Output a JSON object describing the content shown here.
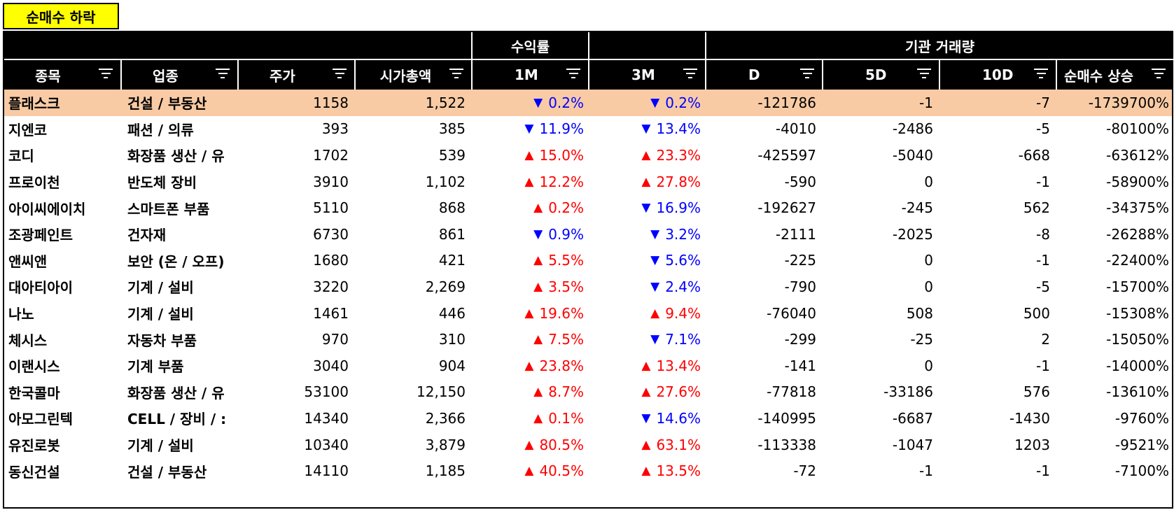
{
  "tag": "순매수 하락",
  "header_groups": {
    "returns": "수익률",
    "institution": "기관 거래량"
  },
  "columns": [
    "종목",
    "업종",
    "주가",
    "시가총액",
    "1M",
    "3M",
    "D",
    "5D",
    "10D",
    "순매수 상승"
  ],
  "colors": {
    "highlight": "#f8cba5",
    "up": "#ff0000",
    "down": "#0000ff",
    "tag_bg": "#ffff00"
  },
  "rows": [
    {
      "name": "플래스크",
      "sector": "건설 / 부동산",
      "price": "1158",
      "cap": "1,522",
      "r1m_dir": "down",
      "r1m": "0.2%",
      "r3m_dir": "down",
      "r3m": "0.2%",
      "d": "-121786",
      "d5": "-1",
      "d10": "-7",
      "net": "-1739700%",
      "highlight": true
    },
    {
      "name": "지엔코",
      "sector": "패션 / 의류",
      "price": "393",
      "cap": "385",
      "r1m_dir": "down",
      "r1m": "11.9%",
      "r3m_dir": "down",
      "r3m": "13.4%",
      "d": "-4010",
      "d5": "-2486",
      "d10": "-5",
      "net": "-80100%"
    },
    {
      "name": "코디",
      "sector": "화장품 생산 / 유",
      "price": "1702",
      "cap": "539",
      "r1m_dir": "up",
      "r1m": "15.0%",
      "r3m_dir": "up",
      "r3m": "23.3%",
      "d": "-425597",
      "d5": "-5040",
      "d10": "-668",
      "net": "-63612%"
    },
    {
      "name": "프로이천",
      "sector": "반도체 장비",
      "price": "3910",
      "cap": "1,102",
      "r1m_dir": "up",
      "r1m": "12.2%",
      "r3m_dir": "up",
      "r3m": "27.8%",
      "d": "-590",
      "d5": "0",
      "d10": "-1",
      "net": "-58900%"
    },
    {
      "name": "아이씨에이치",
      "sector": "스마트폰 부품",
      "price": "5110",
      "cap": "868",
      "r1m_dir": "up",
      "r1m": "0.2%",
      "r3m_dir": "down",
      "r3m": "16.9%",
      "d": "-192627",
      "d5": "-245",
      "d10": "562",
      "net": "-34375%"
    },
    {
      "name": "조광페인트",
      "sector": "건자재",
      "price": "6730",
      "cap": "861",
      "r1m_dir": "down",
      "r1m": "0.9%",
      "r3m_dir": "down",
      "r3m": "3.2%",
      "d": "-2111",
      "d5": "-2025",
      "d10": "-8",
      "net": "-26288%"
    },
    {
      "name": "앤씨앤",
      "sector": "보안 (온 / 오프)",
      "price": "1680",
      "cap": "421",
      "r1m_dir": "up",
      "r1m": "5.5%",
      "r3m_dir": "down",
      "r3m": "5.6%",
      "d": "-225",
      "d5": "0",
      "d10": "-1",
      "net": "-22400%"
    },
    {
      "name": "대아티아이",
      "sector": "기계 / 설비",
      "price": "3220",
      "cap": "2,269",
      "r1m_dir": "up",
      "r1m": "3.5%",
      "r3m_dir": "down",
      "r3m": "2.4%",
      "d": "-790",
      "d5": "0",
      "d10": "-5",
      "net": "-15700%"
    },
    {
      "name": "나노",
      "sector": "기계 / 설비",
      "price": "1461",
      "cap": "446",
      "r1m_dir": "up",
      "r1m": "19.6%",
      "r3m_dir": "up",
      "r3m": "9.4%",
      "d": "-76040",
      "d5": "508",
      "d10": "500",
      "net": "-15308%"
    },
    {
      "name": "체시스",
      "sector": "자동차 부품",
      "price": "970",
      "cap": "310",
      "r1m_dir": "up",
      "r1m": "7.5%",
      "r3m_dir": "down",
      "r3m": "7.1%",
      "d": "-299",
      "d5": "-25",
      "d10": "2",
      "net": "-15050%"
    },
    {
      "name": "이랜시스",
      "sector": "기계 부품",
      "price": "3040",
      "cap": "904",
      "r1m_dir": "up",
      "r1m": "23.8%",
      "r3m_dir": "up",
      "r3m": "13.4%",
      "d": "-141",
      "d5": "0",
      "d10": "-1",
      "net": "-14000%"
    },
    {
      "name": "한국콜마",
      "sector": "화장품 생산 / 유",
      "price": "53100",
      "cap": "12,150",
      "r1m_dir": "up",
      "r1m": "8.7%",
      "r3m_dir": "up",
      "r3m": "27.6%",
      "d": "-77818",
      "d5": "-33186",
      "d10": "576",
      "net": "-13610%"
    },
    {
      "name": "아모그린텍",
      "sector": "CELL / 장비 / :",
      "price": "14340",
      "cap": "2,366",
      "r1m_dir": "up",
      "r1m": "0.1%",
      "r3m_dir": "down",
      "r3m": "14.6%",
      "d": "-140995",
      "d5": "-6687",
      "d10": "-1430",
      "net": "-9760%"
    },
    {
      "name": "유진로봇",
      "sector": "기계 / 설비",
      "price": "10340",
      "cap": "3,879",
      "r1m_dir": "up",
      "r1m": "80.5%",
      "r3m_dir": "up",
      "r3m": "63.1%",
      "d": "-113338",
      "d5": "-1047",
      "d10": "1203",
      "net": "-9521%"
    },
    {
      "name": "동신건설",
      "sector": "건설 / 부동산",
      "price": "14110",
      "cap": "1,185",
      "r1m_dir": "up",
      "r1m": "40.5%",
      "r3m_dir": "up",
      "r3m": "13.5%",
      "d": "-72",
      "d5": "-1",
      "d10": "-1",
      "net": "-7100%"
    }
  ]
}
